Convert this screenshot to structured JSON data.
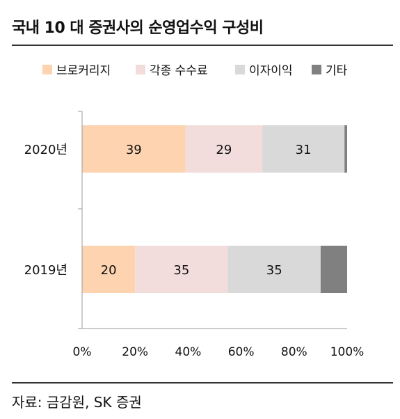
{
  "title": "국내 10 대 증권사의 순영업수익 구성비",
  "source": "자료: 금감원, SK 증권",
  "chart_data": {
    "type": "bar",
    "orientation": "horizontal",
    "stacked": true,
    "normalized": true,
    "categories": [
      "2020년",
      "2019년"
    ],
    "series": [
      {
        "name": "브로커리지",
        "values": [
          39,
          20
        ],
        "color": "#fdd3b0"
      },
      {
        "name": "각종 수수료",
        "values": [
          29,
          35
        ],
        "color": "#f2dcdc"
      },
      {
        "name": "이자이익",
        "values": [
          31,
          35
        ],
        "color": "#d9d9d9"
      },
      {
        "name": "기타",
        "values": [
          1,
          10
        ],
        "color": "#808080"
      }
    ],
    "data_labels": [
      [
        "39",
        "29",
        "31",
        ""
      ],
      [
        "20",
        "35",
        "35",
        ""
      ]
    ],
    "x_ticks": [
      "0%",
      "20%",
      "40%",
      "60%",
      "80%",
      "100%"
    ],
    "xlim": [
      0,
      100
    ],
    "legend_position": "top",
    "grid": false
  }
}
